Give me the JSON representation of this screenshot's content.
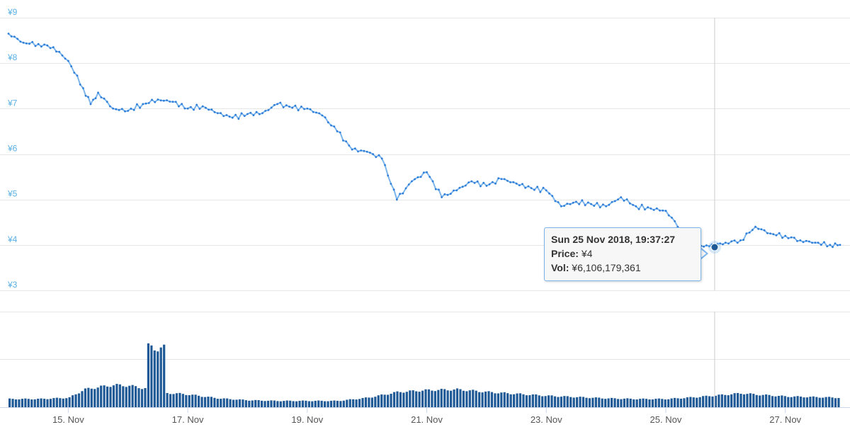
{
  "chart_data": {
    "type": "line",
    "title": "",
    "xlabel": "",
    "ylabel": "",
    "price_axis": {
      "ticks": [
        "¥3",
        "¥4",
        "¥5",
        "¥6",
        "¥7",
        "¥8",
        "¥9"
      ],
      "tick_values": [
        3,
        4,
        5,
        6,
        7,
        8,
        9
      ],
      "ylim": [
        3,
        9
      ]
    },
    "x_axis": {
      "ticks": [
        "15. Nov",
        "17. Nov",
        "19. Nov",
        "21. Nov",
        "23. Nov",
        "25. Nov",
        "27. Nov"
      ],
      "tick_dates": [
        "2018-11-15",
        "2018-11-17",
        "2018-11-19",
        "2018-11-21",
        "2018-11-23",
        "2018-11-25",
        "2018-11-27"
      ],
      "xlim": [
        "2018-11-14T00:00",
        "2018-11-27T22:00"
      ]
    },
    "grid": true,
    "series": [
      {
        "type": "line",
        "color": "#2f7ed8",
        "x": [
          "2018-11-14T00:00",
          "2018-11-14T06:00",
          "2018-11-14T12:00",
          "2018-11-14T18:00",
          "2018-11-15T00:00",
          "2018-11-15T06:00",
          "2018-11-15T09:00",
          "2018-11-15T12:00",
          "2018-11-15T18:00",
          "2018-11-16T00:00",
          "2018-11-16T06:00",
          "2018-11-16T12:00",
          "2018-11-16T18:00",
          "2018-11-17T00:00",
          "2018-11-17T06:00",
          "2018-11-17T12:00",
          "2018-11-17T18:00",
          "2018-11-18T00:00",
          "2018-11-18T06:00",
          "2018-11-18T12:00",
          "2018-11-18T18:00",
          "2018-11-19T00:00",
          "2018-11-19T06:00",
          "2018-11-19T12:00",
          "2018-11-19T18:00",
          "2018-11-20T00:00",
          "2018-11-20T06:00",
          "2018-11-20T12:00",
          "2018-11-20T18:00",
          "2018-11-21T00:00",
          "2018-11-21T06:00",
          "2018-11-21T12:00",
          "2018-11-21T18:00",
          "2018-11-22T00:00",
          "2018-11-22T06:00",
          "2018-11-22T12:00",
          "2018-11-22T18:00",
          "2018-11-23T00:00",
          "2018-11-23T06:00",
          "2018-11-23T12:00",
          "2018-11-23T18:00",
          "2018-11-24T00:00",
          "2018-11-24T06:00",
          "2018-11-24T12:00",
          "2018-11-24T18:00",
          "2018-11-25T00:00",
          "2018-11-25T06:00",
          "2018-11-25T12:00",
          "2018-11-25T19:37",
          "2018-11-26T00:00",
          "2018-11-26T06:00",
          "2018-11-26T12:00",
          "2018-11-26T18:00",
          "2018-11-27T00:00",
          "2018-11-27T06:00",
          "2018-11-27T12:00",
          "2018-11-27T18:00",
          "2018-11-27T22:00"
        ],
        "values": [
          8.65,
          8.45,
          8.42,
          8.35,
          8.05,
          7.45,
          7.1,
          7.35,
          7.0,
          6.95,
          7.1,
          7.2,
          7.15,
          7.0,
          7.05,
          6.9,
          6.8,
          6.88,
          6.9,
          7.1,
          7.02,
          7.0,
          6.85,
          6.5,
          6.1,
          6.05,
          5.9,
          5.0,
          5.4,
          5.6,
          5.05,
          5.2,
          5.4,
          5.3,
          5.45,
          5.35,
          5.25,
          5.2,
          4.85,
          4.95,
          4.9,
          4.85,
          5.05,
          4.85,
          4.8,
          4.75,
          4.35,
          3.95,
          4.0,
          4.05,
          4.1,
          4.4,
          4.25,
          4.2,
          4.1,
          4.05,
          4.0,
          4.0
        ]
      },
      {
        "type": "column",
        "color": "#1f5a96",
        "x": [
          "2018-11-14T00:00",
          "2018-11-14T12:00",
          "2018-11-15T00:00",
          "2018-11-15T06:00",
          "2018-11-15T12:00",
          "2018-11-15T18:00",
          "2018-11-16T00:00",
          "2018-11-16T06:00",
          "2018-11-16T09:00",
          "2018-11-16T12:00",
          "2018-11-16T18:00",
          "2018-11-17T00:00",
          "2018-11-17T12:00",
          "2018-11-18T00:00",
          "2018-11-18T12:00",
          "2018-11-19T00:00",
          "2018-11-19T12:00",
          "2018-11-20T00:00",
          "2018-11-20T12:00",
          "2018-11-21T00:00",
          "2018-11-21T12:00",
          "2018-11-22T00:00",
          "2018-11-22T12:00",
          "2018-11-23T00:00",
          "2018-11-23T12:00",
          "2018-11-24T00:00",
          "2018-11-24T12:00",
          "2018-11-25T00:00",
          "2018-11-25T12:00",
          "2018-11-26T00:00",
          "2018-11-26T06:00",
          "2018-11-26T12:00",
          "2018-11-27T00:00",
          "2018-11-27T12:00",
          "2018-11-27T22:00"
        ],
        "values": [
          0.13,
          0.13,
          0.15,
          0.28,
          0.32,
          0.35,
          0.34,
          0.3,
          0.95,
          0.93,
          0.22,
          0.2,
          0.14,
          0.11,
          0.1,
          0.1,
          0.1,
          0.15,
          0.24,
          0.27,
          0.28,
          0.24,
          0.21,
          0.18,
          0.16,
          0.14,
          0.13,
          0.13,
          0.16,
          0.2,
          0.22,
          0.2,
          0.17,
          0.16,
          0.15
        ]
      }
    ],
    "crosshair_x": "2018-11-25T19:37:27",
    "tooltip": {
      "title": "Sun 25 Nov 2018, 19:37:27",
      "price_label": "Price:",
      "price_value": "¥4",
      "vol_label": "Vol:",
      "vol_value": "¥6,106,179,361"
    }
  }
}
